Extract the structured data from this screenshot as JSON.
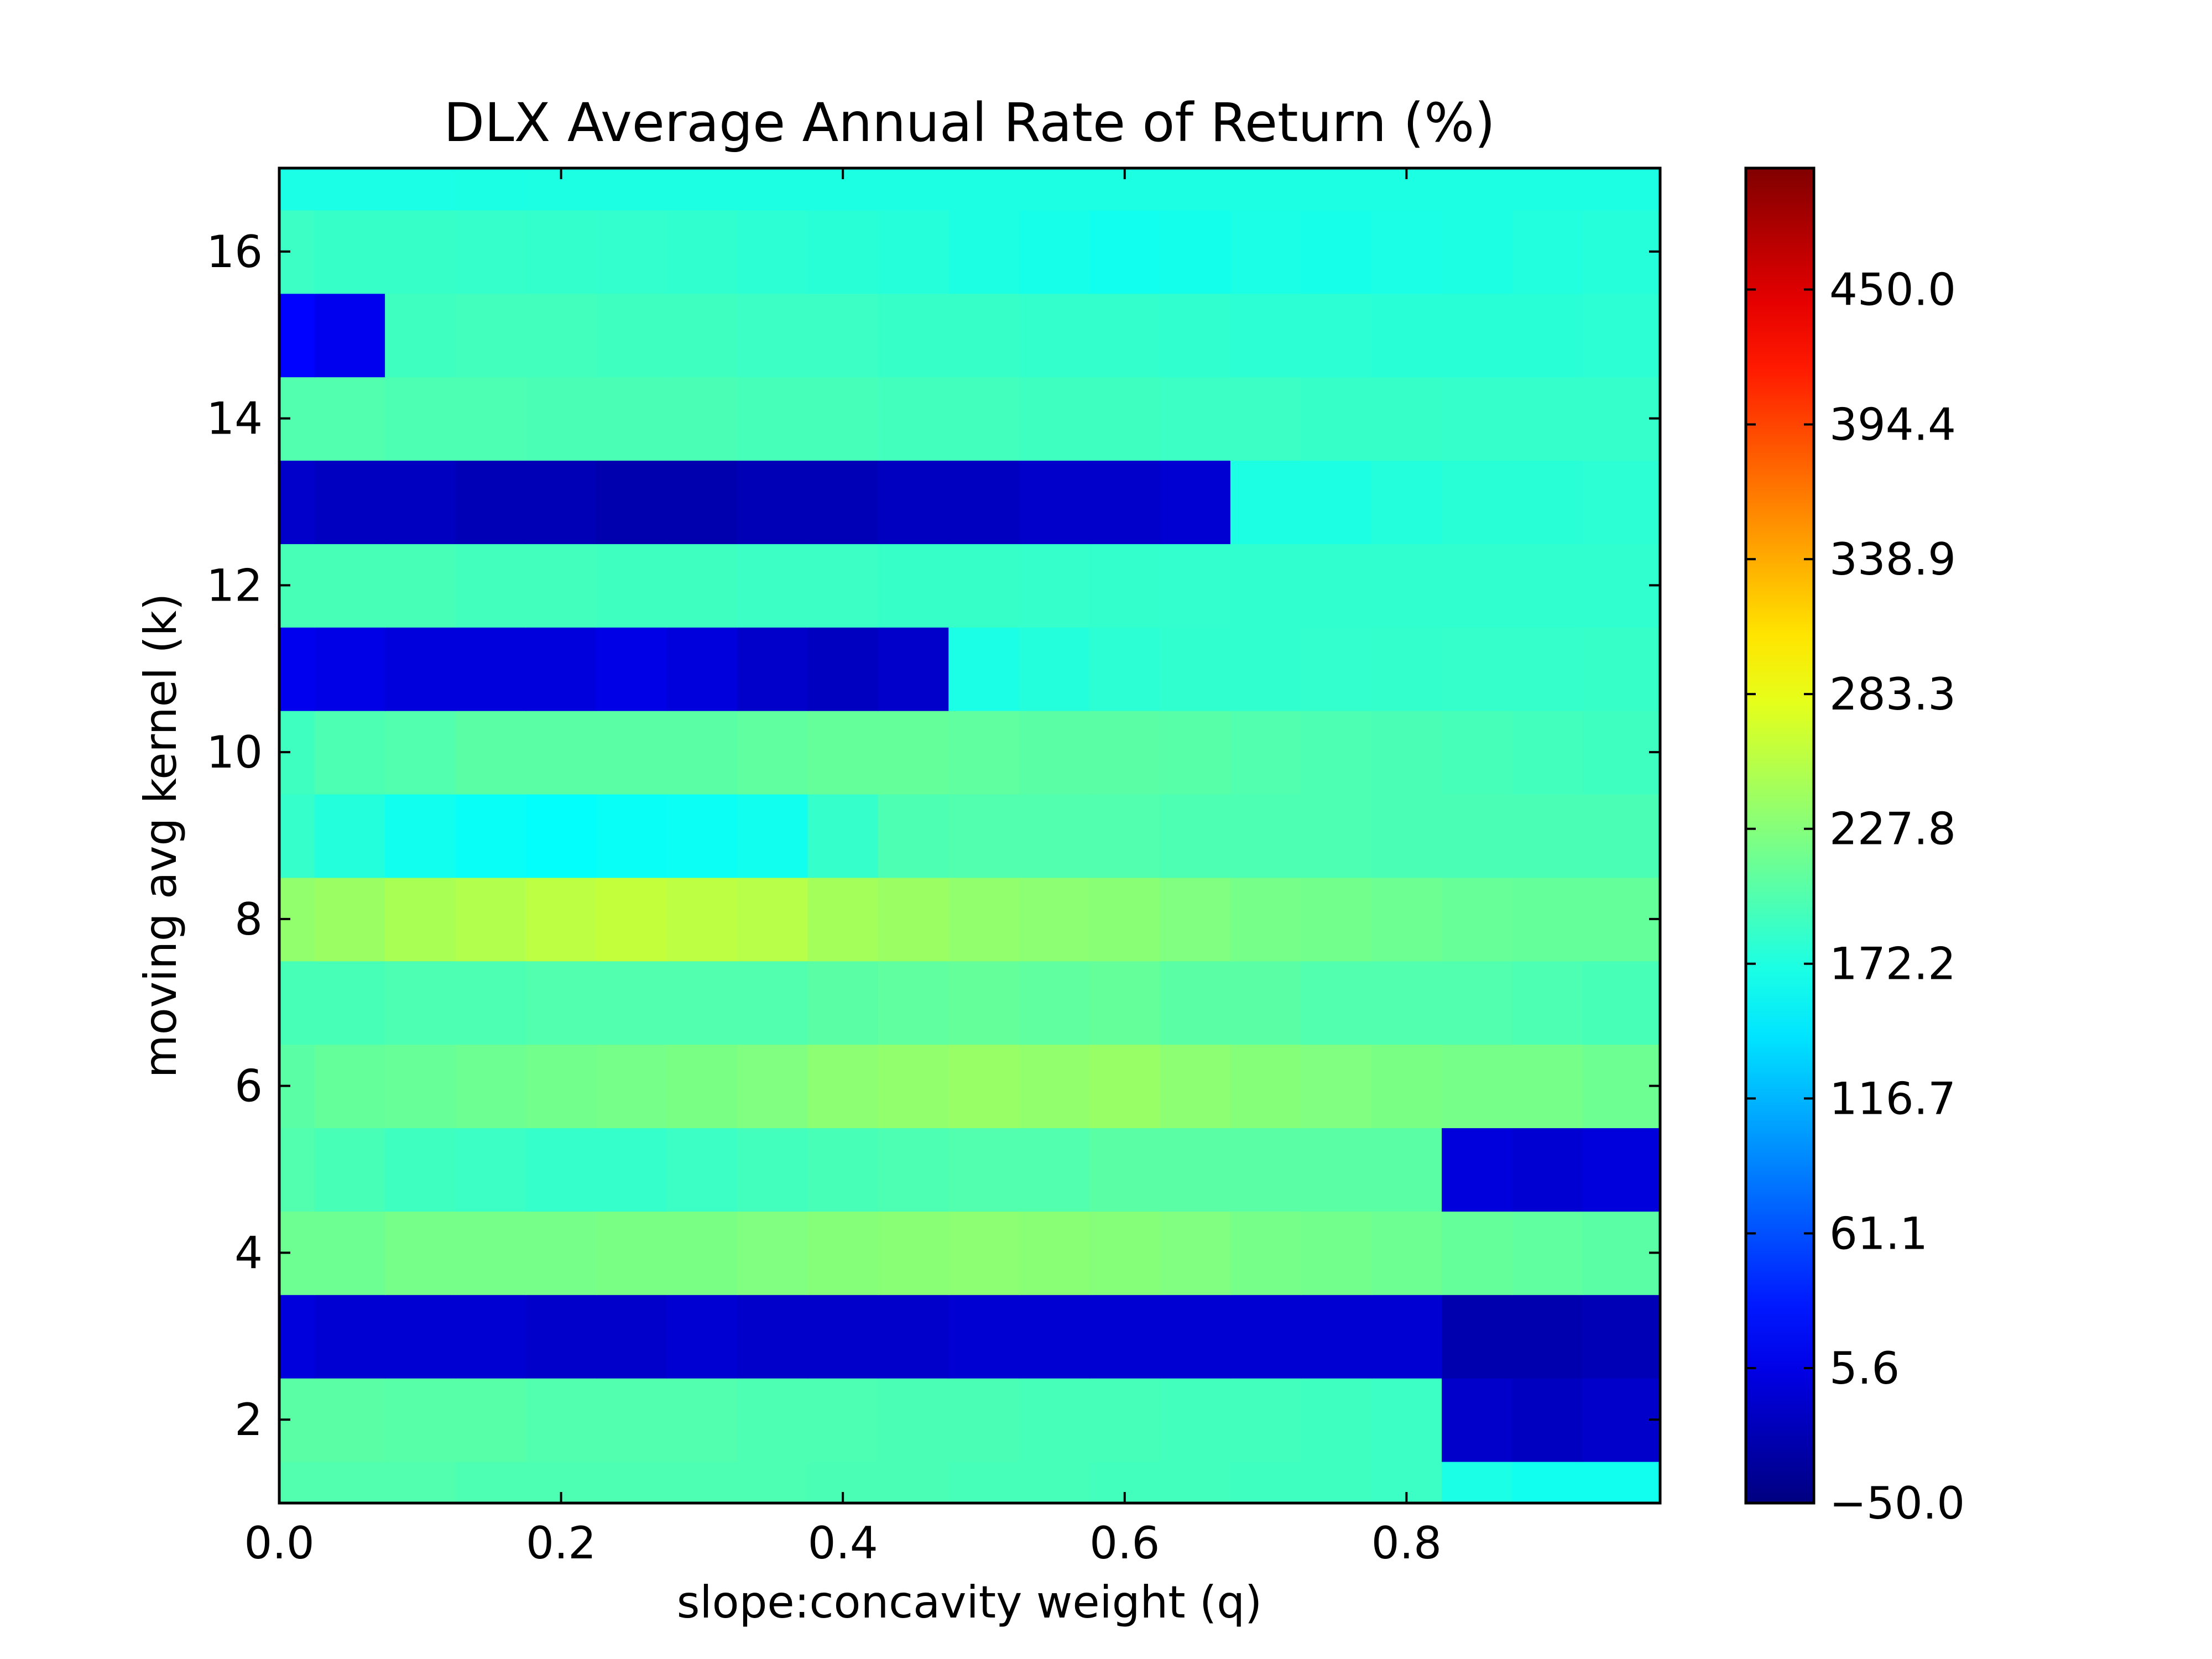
{
  "chart_data": {
    "type": "heatmap",
    "title": "DLX Average Annual Rate of Return (%)",
    "xlabel": "slope:concavity weight (q)",
    "ylabel": "moving avg kernel (k)",
    "xlim": [
      0.0,
      0.98
    ],
    "ylim": [
      1,
      17
    ],
    "x_ticks": [
      "0.0",
      "0.2",
      "0.4",
      "0.6",
      "0.8"
    ],
    "y_ticks": [
      "2",
      "4",
      "6",
      "8",
      "10",
      "12",
      "14",
      "16"
    ],
    "colormap": "jet",
    "colorbar": {
      "range": [
        -50.0,
        500.0
      ],
      "ticks": [
        "−50.0",
        "5.6",
        "61.1",
        "116.7",
        "172.2",
        "227.8",
        "283.3",
        "338.9",
        "394.4",
        "450.0"
      ]
    },
    "x": [
      0.0,
      0.05,
      0.1,
      0.15,
      0.2,
      0.25,
      0.3,
      0.35,
      0.4,
      0.45,
      0.5,
      0.55,
      0.6,
      0.65,
      0.7,
      0.75,
      0.8,
      0.85,
      0.9,
      0.95
    ],
    "y": [
      1,
      2,
      3,
      4,
      5,
      6,
      7,
      8,
      9,
      10,
      11,
      12,
      13,
      14,
      15,
      16,
      17
    ],
    "z": [
      [
        200,
        200,
        200,
        198,
        198,
        198,
        198,
        198,
        196,
        196,
        194,
        194,
        192,
        192,
        190,
        190,
        188,
        170,
        165,
        165
      ],
      [
        205,
        205,
        203,
        203,
        200,
        200,
        200,
        198,
        198,
        196,
        196,
        194,
        194,
        192,
        192,
        190,
        188,
        -10,
        -15,
        -10
      ],
      [
        0,
        -5,
        -5,
        -5,
        -10,
        -10,
        -5,
        -10,
        -10,
        -10,
        -5,
        -5,
        -5,
        -5,
        -5,
        -5,
        -5,
        -25,
        -25,
        -20
      ],
      [
        215,
        215,
        220,
        220,
        220,
        222,
        222,
        225,
        228,
        230,
        232,
        230,
        228,
        225,
        220,
        218,
        215,
        210,
        208,
        205
      ],
      [
        200,
        195,
        190,
        188,
        185,
        185,
        188,
        192,
        195,
        198,
        200,
        200,
        205,
        205,
        205,
        205,
        205,
        0,
        -5,
        0
      ],
      [
        205,
        210,
        212,
        215,
        218,
        220,
        222,
        225,
        232,
        235,
        238,
        235,
        238,
        232,
        228,
        225,
        222,
        220,
        220,
        215
      ],
      [
        195,
        195,
        198,
        198,
        200,
        200,
        200,
        200,
        205,
        208,
        210,
        208,
        210,
        205,
        205,
        200,
        200,
        200,
        198,
        195
      ],
      [
        235,
        240,
        248,
        252,
        258,
        262,
        258,
        255,
        245,
        240,
        235,
        232,
        230,
        225,
        220,
        218,
        215,
        212,
        210,
        210
      ],
      [
        185,
        175,
        165,
        160,
        158,
        160,
        162,
        165,
        185,
        198,
        200,
        200,
        200,
        198,
        198,
        198,
        196,
        196,
        196,
        196
      ],
      [
        190,
        198,
        200,
        205,
        205,
        205,
        205,
        208,
        210,
        210,
        208,
        205,
        205,
        203,
        200,
        198,
        196,
        194,
        192,
        190
      ],
      [
        10,
        5,
        0,
        0,
        0,
        5,
        0,
        -10,
        -15,
        -10,
        170,
        175,
        180,
        182,
        182,
        183,
        184,
        185,
        185,
        186
      ],
      [
        195,
        195,
        195,
        192,
        192,
        190,
        190,
        188,
        188,
        186,
        186,
        185,
        184,
        183,
        182,
        182,
        182,
        182,
        182,
        182
      ],
      [
        -10,
        -15,
        -15,
        -20,
        -20,
        -25,
        -25,
        -20,
        -20,
        -15,
        -15,
        -10,
        -10,
        -5,
        172,
        172,
        175,
        178,
        178,
        180
      ],
      [
        200,
        200,
        198,
        198,
        196,
        196,
        196,
        194,
        194,
        192,
        192,
        190,
        190,
        188,
        188,
        186,
        186,
        185,
        185,
        185
      ],
      [
        20,
        10,
        190,
        192,
        192,
        190,
        190,
        188,
        188,
        186,
        186,
        184,
        184,
        182,
        180,
        180,
        178,
        178,
        178,
        180
      ],
      [
        188,
        186,
        186,
        185,
        184,
        183,
        182,
        180,
        178,
        176,
        172,
        168,
        165,
        167,
        170,
        168,
        170,
        172,
        174,
        176
      ],
      [
        170,
        170,
        170,
        171,
        172,
        172,
        172,
        172,
        172,
        172,
        172,
        172,
        172,
        172,
        172,
        172,
        172,
        172,
        172,
        172
      ]
    ]
  }
}
